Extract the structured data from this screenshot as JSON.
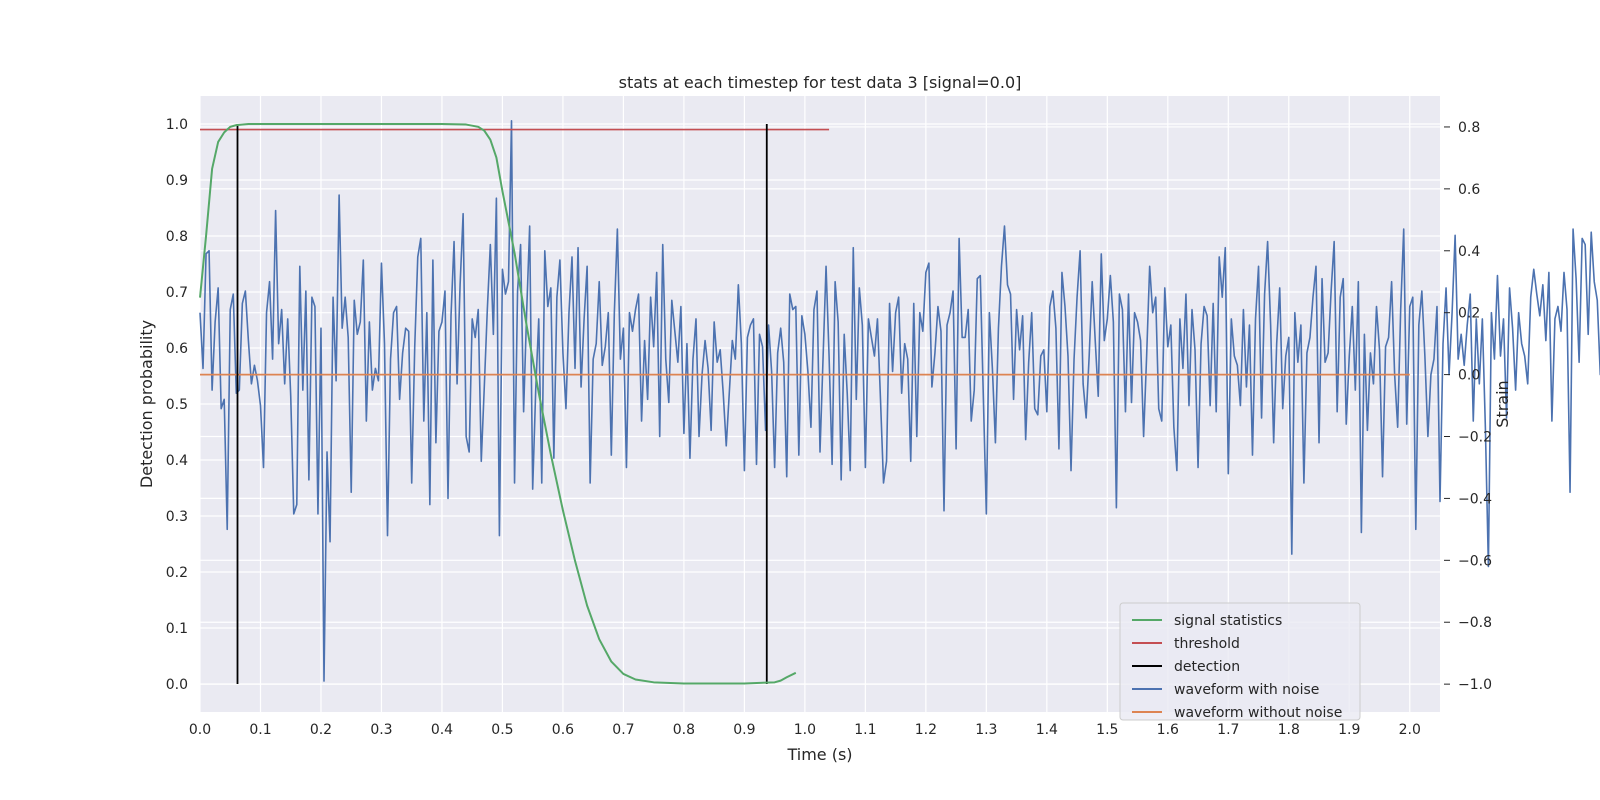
{
  "chart_data": {
    "type": "line",
    "title": "stats at each timestep for test data 3 [signal=0.0]",
    "xlabel": "Time (s)",
    "ylabel_left": "Detection probability",
    "ylabel_right": "Strain",
    "xlim": [
      0.0,
      2.05
    ],
    "ylim_left": [
      -0.05,
      1.05
    ],
    "ylim_right": [
      -1.09,
      0.9
    ],
    "x_ticks": [
      "0.0",
      "0.1",
      "0.2",
      "0.3",
      "0.4",
      "0.5",
      "0.6",
      "0.7",
      "0.8",
      "0.9",
      "1.0",
      "1.1",
      "1.2",
      "1.3",
      "1.4",
      "1.5",
      "1.6",
      "1.7",
      "1.8",
      "1.9",
      "2.0"
    ],
    "y_left_ticks": [
      "0.0",
      "0.1",
      "0.2",
      "0.3",
      "0.4",
      "0.5",
      "0.6",
      "0.7",
      "0.8",
      "0.9",
      "1.0"
    ],
    "y_right_ticks": [
      "−1.0",
      "−0.8",
      "−0.6",
      "−0.4",
      "−0.2",
      "0.0",
      "0.2",
      "0.4",
      "0.6",
      "0.8"
    ],
    "grid": true,
    "legend_position": "lower-right",
    "series": [
      {
        "name": "signal statistics",
        "axis": "left",
        "color": "#55a868",
        "x": [
          0.0,
          0.01,
          0.02,
          0.03,
          0.04,
          0.05,
          0.06,
          0.07,
          0.08,
          0.1,
          0.15,
          0.2,
          0.3,
          0.4,
          0.44,
          0.46,
          0.47,
          0.48,
          0.49,
          0.5,
          0.52,
          0.54,
          0.56,
          0.58,
          0.6,
          0.62,
          0.64,
          0.66,
          0.68,
          0.7,
          0.72,
          0.75,
          0.8,
          0.9,
          0.95,
          0.96,
          0.97,
          0.985
        ],
        "y": [
          0.69,
          0.8,
          0.92,
          0.968,
          0.985,
          0.995,
          0.998,
          0.999,
          1.0,
          1.0,
          1.0,
          1.0,
          1.0,
          1.0,
          0.999,
          0.995,
          0.988,
          0.972,
          0.94,
          0.88,
          0.77,
          0.64,
          0.52,
          0.41,
          0.31,
          0.22,
          0.14,
          0.08,
          0.04,
          0.018,
          0.008,
          0.003,
          0.001,
          0.001,
          0.003,
          0.006,
          0.012,
          0.02
        ]
      },
      {
        "name": "threshold",
        "axis": "left",
        "color": "#c44e52",
        "x": [
          0.0,
          1.04
        ],
        "y": [
          0.99,
          0.99
        ]
      },
      {
        "name": "detection",
        "axis": "left",
        "color": "#000000",
        "segments": [
          {
            "x": 0.062,
            "y": [
              0.0,
              1.0
            ]
          },
          {
            "x": 0.937,
            "y": [
              0.0,
              1.0
            ]
          }
        ]
      },
      {
        "name": "waveform with noise",
        "axis": "right",
        "color": "#4c72b0",
        "x_start": 0.0,
        "x_step": 0.005,
        "y": [
          0.2,
          0.02,
          0.39,
          0.4,
          -0.05,
          0.17,
          0.28,
          -0.11,
          -0.08,
          -0.5,
          0.21,
          0.26,
          -0.06,
          -0.05,
          0.23,
          0.27,
          0.11,
          -0.03,
          0.03,
          -0.02,
          -0.1,
          -0.3,
          0.2,
          0.3,
          0.05,
          0.53,
          0.1,
          0.21,
          -0.03,
          0.18,
          -0.07,
          -0.45,
          -0.42,
          0.35,
          -0.05,
          0.27,
          -0.34,
          0.25,
          0.22,
          -0.45,
          0.15,
          -0.99,
          -0.25,
          -0.54,
          0.25,
          -0.02,
          0.58,
          0.15,
          0.25,
          0.12,
          -0.38,
          0.24,
          0.13,
          0.17,
          0.37,
          -0.15,
          0.17,
          -0.05,
          0.02,
          -0.02,
          0.36,
          0.1,
          -0.52,
          0.05,
          0.2,
          0.22,
          -0.08,
          0.07,
          0.15,
          0.14,
          -0.35,
          0.09,
          0.38,
          0.44,
          -0.15,
          0.2,
          -0.42,
          0.37,
          -0.22,
          0.14,
          0.17,
          0.27,
          -0.4,
          0.19,
          0.43,
          -0.03,
          0.29,
          0.52,
          -0.2,
          -0.25,
          0.18,
          0.12,
          0.21,
          -0.28,
          -0.04,
          0.21,
          0.42,
          0.13,
          0.57,
          -0.52,
          0.34,
          0.26,
          0.3,
          0.82,
          -0.35,
          0.27,
          0.42,
          -0.12,
          0.2,
          0.48,
          -0.37,
          -0.05,
          0.18,
          -0.35,
          0.4,
          0.22,
          0.28,
          -0.27,
          0.25,
          0.37,
          0.07,
          -0.11,
          0.2,
          0.38,
          0.02,
          0.41,
          -0.04,
          0.18,
          0.35,
          -0.35,
          0.05,
          0.1,
          0.3,
          0.03,
          0.09,
          0.2,
          -0.26,
          0.2,
          0.47,
          0.05,
          0.15,
          -0.3,
          0.2,
          0.14,
          0.21,
          0.26,
          -0.15,
          0.11,
          -0.08,
          0.25,
          0.09,
          0.33,
          -0.2,
          0.42,
          0.05,
          -0.09,
          0.24,
          0.14,
          0.04,
          0.22,
          -0.19,
          0.1,
          -0.27,
          0.05,
          0.18,
          -0.2,
          0.0,
          0.11,
          0.02,
          -0.18,
          0.17,
          0.04,
          0.08,
          -0.06,
          -0.23,
          -0.06,
          0.11,
          0.05,
          0.29,
          0.1,
          -0.31,
          0.12,
          0.16,
          0.18,
          -0.29,
          0.13,
          0.09,
          -0.18,
          0.16,
          0.01,
          -0.3,
          0.07,
          0.15,
          0.04,
          -0.33,
          0.26,
          0.21,
          0.22,
          -0.26,
          0.19,
          0.13,
          0.01,
          -0.17,
          0.21,
          0.27,
          -0.25,
          0.05,
          0.35,
          0.06,
          -0.29,
          0.3,
          0.17,
          -0.34,
          0.13,
          -0.06,
          -0.31,
          0.41,
          -0.08,
          0.28,
          0.16,
          -0.3,
          0.18,
          0.12,
          0.06,
          0.18,
          -0.08,
          -0.35,
          -0.28,
          0.23,
          0.01,
          0.2,
          0.25,
          -0.06,
          0.1,
          0.05,
          -0.28,
          0.23,
          -0.2,
          0.2,
          0.14,
          0.33,
          0.36,
          -0.04,
          0.07,
          0.22,
          0.14,
          -0.44,
          0.16,
          0.2,
          0.27,
          -0.24,
          0.44,
          0.12,
          0.12,
          0.21,
          -0.15,
          -0.05,
          0.31,
          0.32,
          -0.07,
          -0.45,
          0.2,
          0.02,
          -0.22,
          0.15,
          0.35,
          0.48,
          0.29,
          0.26,
          -0.08,
          0.21,
          0.08,
          0.19,
          -0.21,
          0.04,
          0.2,
          -0.11,
          -0.13,
          0.06,
          0.08,
          -0.12,
          0.22,
          0.27,
          0.15,
          -0.24,
          0.33,
          0.22,
          0.06,
          -0.31,
          0.05,
          0.25,
          0.4,
          -0.03,
          -0.14,
          0.06,
          0.3,
          0.11,
          -0.07,
          0.39,
          0.11,
          0.18,
          0.32,
          0.17,
          -0.43,
          0.26,
          0.21,
          -0.12,
          0.26,
          -0.09,
          0.2,
          0.17,
          0.11,
          -0.2,
          0.06,
          0.35,
          0.2,
          0.25,
          -0.11,
          -0.15,
          0.28,
          0.09,
          0.16,
          -0.17,
          -0.31,
          0.18,
          0.02,
          0.26,
          -0.1,
          0.21,
          0.08,
          -0.3,
          0.1,
          0.22,
          0.19,
          -0.1,
          0.23,
          -0.12,
          0.38,
          0.25,
          0.41,
          -0.32,
          0.18,
          0.06,
          0.03,
          -0.1,
          0.21,
          -0.04,
          0.16,
          -0.26,
          0.18,
          0.35,
          -0.14,
          0.26,
          0.43,
          0.16,
          -0.22,
          0.1,
          0.28,
          -0.11,
          0.06,
          0.12,
          -0.58,
          0.2,
          0.04,
          0.16,
          -0.35,
          0.07,
          0.12,
          0.25,
          0.35,
          -0.22,
          0.31,
          0.04,
          0.07,
          0.27,
          0.43,
          -0.12,
          0.25,
          0.31,
          -0.16,
          0.06,
          0.22,
          -0.05,
          0.3,
          -0.51,
          0.13,
          -0.18,
          0.07,
          -0.03,
          0.22,
          0.08,
          -0.33,
          0.09,
          0.12,
          0.3,
          0.0,
          -0.17,
          0.21,
          0.47,
          -0.16,
          0.22,
          0.25,
          -0.5,
          0.16,
          0.27,
          0.06,
          -0.2,
          0.0,
          0.05,
          0.22,
          -0.41,
          0.1,
          0.28,
          0.0,
          0.2,
          0.45,
          0.05,
          0.13,
          0.03,
          0.16,
          0.26,
          -0.15,
          0.18,
          -0.03,
          0.18,
          -0.17,
          -0.62,
          0.2,
          0.05,
          0.32,
          0.06,
          0.18,
          -0.14,
          0.28,
          0.15,
          -0.05,
          0.2,
          0.1,
          0.06,
          -0.03,
          0.25,
          0.34,
          0.26,
          0.19,
          0.29,
          0.11,
          0.33,
          -0.15,
          0.18,
          0.22,
          0.14,
          0.33,
          0.21,
          -0.38,
          0.47,
          0.31,
          0.04,
          0.44,
          0.42,
          0.13,
          0.46,
          0.3,
          0.24,
          0.0,
          0.17,
          0.2,
          -0.37,
          0.45,
          0.42,
          0.45,
          0.32,
          -0.06,
          0.27,
          0.41,
          0.04
        ]
      },
      {
        "name": "waveform without noise",
        "axis": "right",
        "color": "#dd8452",
        "x": [
          0.0,
          2.0
        ],
        "y": [
          0.0,
          0.0
        ]
      }
    ]
  }
}
